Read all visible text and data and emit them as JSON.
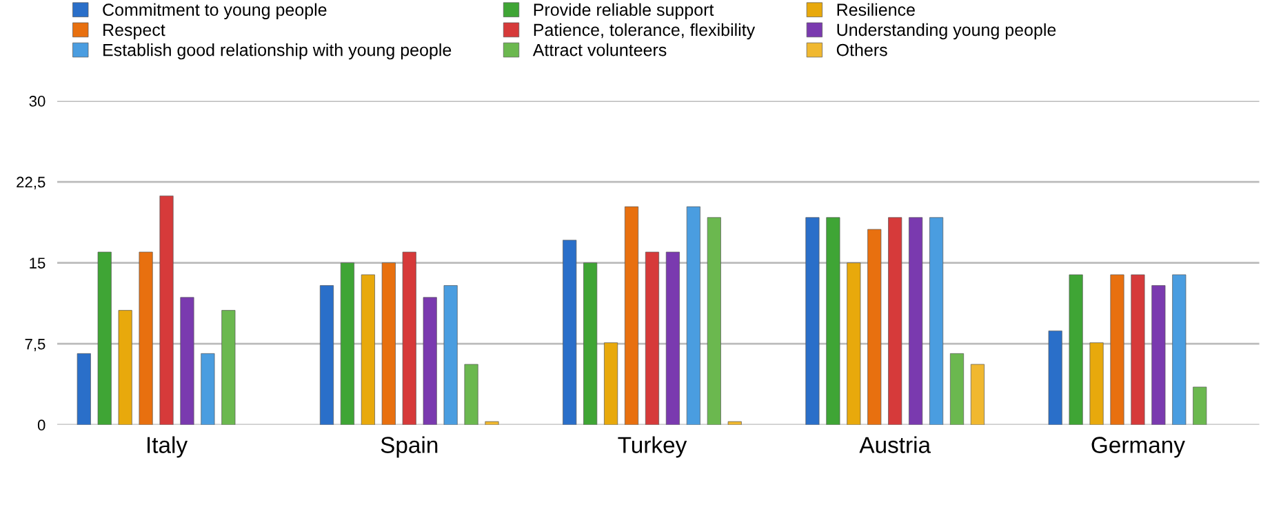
{
  "chart_data": {
    "type": "bar",
    "categories": [
      "Italy",
      "Spain",
      "Turkey",
      "Austria",
      "Germany"
    ],
    "series": [
      {
        "name": "Commitment to young people",
        "color": "#2a6fc9",
        "values": [
          6.6,
          12.9,
          17.1,
          19.2,
          8.7
        ]
      },
      {
        "name": "Provide reliable support",
        "color": "#3fa535",
        "values": [
          16.0,
          15.0,
          15.0,
          19.2,
          13.9
        ]
      },
      {
        "name": "Resilience",
        "color": "#e8a90c",
        "values": [
          10.6,
          13.9,
          7.6,
          15.0,
          7.6
        ]
      },
      {
        "name": "Respect",
        "color": "#e8700f",
        "values": [
          16.0,
          15.0,
          20.2,
          18.1,
          13.9
        ]
      },
      {
        "name": "Patience, tolerance, flexibility",
        "color": "#d63a3a",
        "values": [
          21.2,
          16.0,
          16.0,
          19.2,
          13.9
        ]
      },
      {
        "name": "Understanding young people",
        "color": "#7a3aaf",
        "values": [
          11.8,
          11.8,
          16.0,
          19.2,
          12.9
        ]
      },
      {
        "name": "Establish good relationship with young people",
        "color": "#4a9de0",
        "values": [
          6.6,
          12.9,
          20.2,
          19.2,
          13.9
        ]
      },
      {
        "name": "Attract volunteers",
        "color": "#6bb84f",
        "values": [
          10.6,
          5.6,
          19.2,
          6.6,
          3.5
        ]
      },
      {
        "name": "Others",
        "color": "#f0b830",
        "values": [
          null,
          0.3,
          0.3,
          5.6,
          null
        ]
      }
    ],
    "ylim": [
      0,
      30
    ],
    "yticks": [
      {
        "value": 0,
        "label": "0"
      },
      {
        "value": 7.5,
        "label": "7,5"
      },
      {
        "value": 15,
        "label": "15"
      },
      {
        "value": 22.5,
        "label": "22,5"
      },
      {
        "value": 30,
        "label": "30"
      }
    ],
    "grid": "y",
    "legend": "top"
  }
}
